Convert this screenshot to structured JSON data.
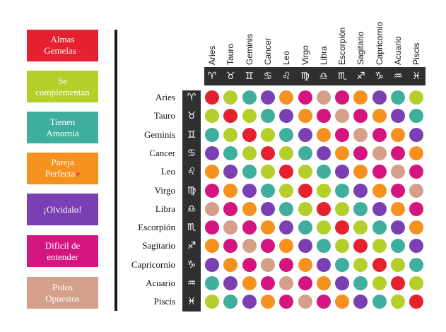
{
  "legend": [
    {
      "key": "R",
      "label_line1": "Almas",
      "label_line2": "Gemelas",
      "heart": true,
      "color": "#e5202f"
    },
    {
      "key": "G",
      "label_line1": "Se",
      "label_line2": "complementan",
      "heart": false,
      "color": "#b5cf2a"
    },
    {
      "key": "T",
      "label_line1": "Tienen",
      "label_line2": "Amornia",
      "heart": false,
      "color": "#3fae9c"
    },
    {
      "key": "O",
      "label_line1": "Pareja",
      "label_line2": "Perfecta",
      "heart": true,
      "color": "#f5921e"
    },
    {
      "key": "P",
      "label_line1": "¡Olvidalo!",
      "label_line2": "",
      "heart": false,
      "color": "#7a3fb2"
    },
    {
      "key": "M",
      "label_line1": "Dificil de",
      "label_line2": "entender",
      "heart": false,
      "color": "#d4157f"
    },
    {
      "key": "S",
      "label_line1": "Polos",
      "label_line2": "Opuestos",
      "heart": false,
      "color": "#d4a08a"
    }
  ],
  "signs": [
    {
      "name": "Aries",
      "symbol": "♈"
    },
    {
      "name": "Tauro",
      "symbol": "♉"
    },
    {
      "name": "Geminis",
      "symbol": "♊"
    },
    {
      "name": "Cancer",
      "symbol": "♋"
    },
    {
      "name": "Leo",
      "symbol": "♌"
    },
    {
      "name": "Virgo",
      "symbol": "♍"
    },
    {
      "name": "Libra",
      "symbol": "♎"
    },
    {
      "name": "Escorpión",
      "symbol": "♏"
    },
    {
      "name": "Sagitario",
      "symbol": "♐"
    },
    {
      "name": "Capricornio",
      "symbol": "♑"
    },
    {
      "name": "Acuario",
      "symbol": "♒"
    },
    {
      "name": "Piscis",
      "symbol": "♓"
    }
  ],
  "grid": [
    [
      "R",
      "G",
      "T",
      "P",
      "O",
      "M",
      "S",
      "M",
      "O",
      "P",
      "T",
      "G"
    ],
    [
      "G",
      "R",
      "G",
      "T",
      "P",
      "O",
      "M",
      "S",
      "M",
      "O",
      "P",
      "T"
    ],
    [
      "T",
      "G",
      "R",
      "G",
      "T",
      "P",
      "O",
      "M",
      "S",
      "M",
      "O",
      "P"
    ],
    [
      "P",
      "T",
      "G",
      "R",
      "G",
      "T",
      "P",
      "O",
      "M",
      "S",
      "M",
      "O"
    ],
    [
      "O",
      "P",
      "T",
      "G",
      "R",
      "G",
      "T",
      "P",
      "O",
      "M",
      "S",
      "M"
    ],
    [
      "M",
      "O",
      "P",
      "T",
      "G",
      "R",
      "G",
      "T",
      "P",
      "O",
      "M",
      "S"
    ],
    [
      "S",
      "M",
      "O",
      "P",
      "T",
      "G",
      "R",
      "G",
      "T",
      "P",
      "O",
      "M"
    ],
    [
      "M",
      "S",
      "M",
      "O",
      "P",
      "T",
      "G",
      "R",
      "G",
      "T",
      "P",
      "O"
    ],
    [
      "O",
      "M",
      "S",
      "M",
      "O",
      "P",
      "T",
      "G",
      "R",
      "G",
      "T",
      "P"
    ],
    [
      "P",
      "O",
      "M",
      "S",
      "M",
      "O",
      "P",
      "T",
      "G",
      "R",
      "G",
      "T"
    ],
    [
      "T",
      "P",
      "O",
      "M",
      "S",
      "M",
      "O",
      "P",
      "T",
      "G",
      "R",
      "G"
    ],
    [
      "G",
      "T",
      "P",
      "O",
      "M",
      "S",
      "M",
      "O",
      "P",
      "T",
      "G",
      "R"
    ]
  ]
}
